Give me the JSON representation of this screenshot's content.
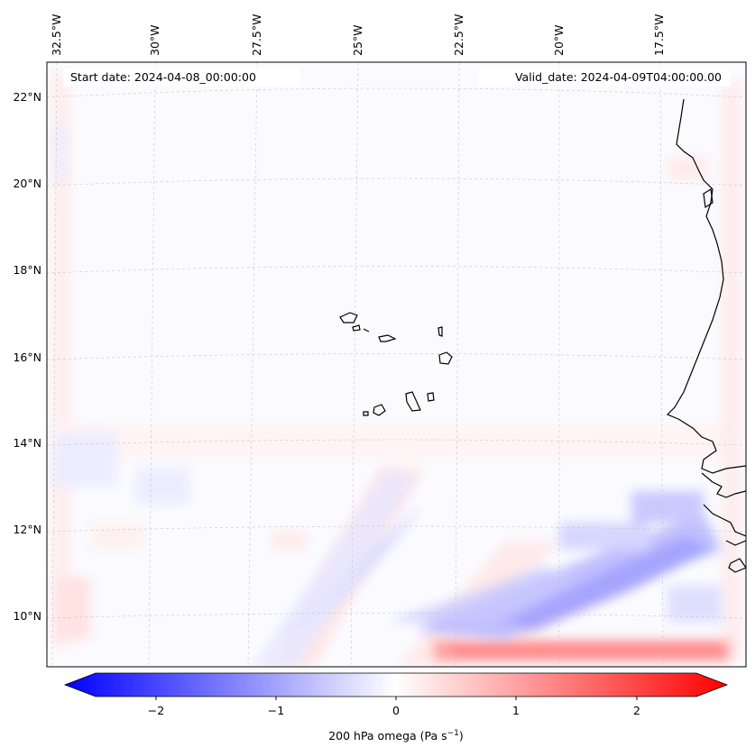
{
  "header": {
    "start_date": "Start date: 2024-04-08_00:00:00",
    "valid_date": "Valid_date: 2024-04-09T04:00:00.00"
  },
  "map": {
    "lon_labels": [
      "32.5°W",
      "30°W",
      "27.5°W",
      "25°W",
      "22.5°W",
      "20°W",
      "17.5°W"
    ],
    "lat_labels": [
      "22°N",
      "20°N",
      "18°N",
      "16°N",
      "14°N",
      "12°N",
      "10°N"
    ],
    "coastline_color": "#000000",
    "gridline_color": "#bbbbbb"
  },
  "colorbar": {
    "ticks": [
      "−2",
      "−1",
      "0",
      "1",
      "2"
    ],
    "label_main": "200 hPa omega (Pa s",
    "label_sup": "−1",
    "label_end": ")",
    "cmap": "bwr",
    "range": [
      -2.6,
      2.6
    ]
  }
}
